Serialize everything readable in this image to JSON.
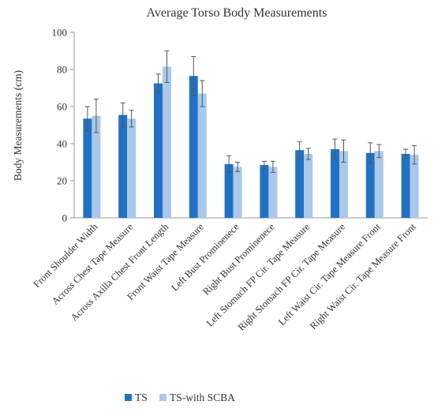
{
  "chart_data": {
    "type": "bar",
    "title": "Average Torso Body Measurements",
    "xlabel": "",
    "ylabel": "Body Measurements (cm)",
    "ylim": [
      0,
      100
    ],
    "yticks": [
      0,
      20,
      40,
      60,
      80,
      100
    ],
    "grid": false,
    "legend_position": "bottom",
    "categories": [
      "Front Shoulder Width",
      "Across Chest Tape Measure",
      "Across Axilla Chest Front Length",
      "Front Waist Tape Measure",
      "Left Bust Prominenece",
      "Right Bust Prominenece",
      "Left Stomach FP Cir. Tape Measure",
      "Right Stomach FP Cir. Tape Measure",
      "Left Waist Cir. Tape Measure Front",
      "Right Waist Cir. Tape Measure Front"
    ],
    "series": [
      {
        "name": "TS",
        "color": "#2172C4",
        "values": [
          53.5,
          55.5,
          72.5,
          76.5,
          29,
          28.5,
          36.5,
          37,
          35,
          34.5
        ],
        "errors": [
          6.5,
          6.5,
          5,
          10.5,
          4.5,
          2,
          4.5,
          5.5,
          5.5,
          2.5
        ]
      },
      {
        "name": "TS-with SCBA",
        "color": "#A9C8EA",
        "values": [
          55,
          53.5,
          81.5,
          67,
          27.5,
          27.5,
          34.5,
          36,
          36,
          34
        ],
        "errors": [
          9,
          4.5,
          8.5,
          7,
          2.5,
          3,
          3,
          6,
          3.5,
          5
        ]
      }
    ]
  }
}
